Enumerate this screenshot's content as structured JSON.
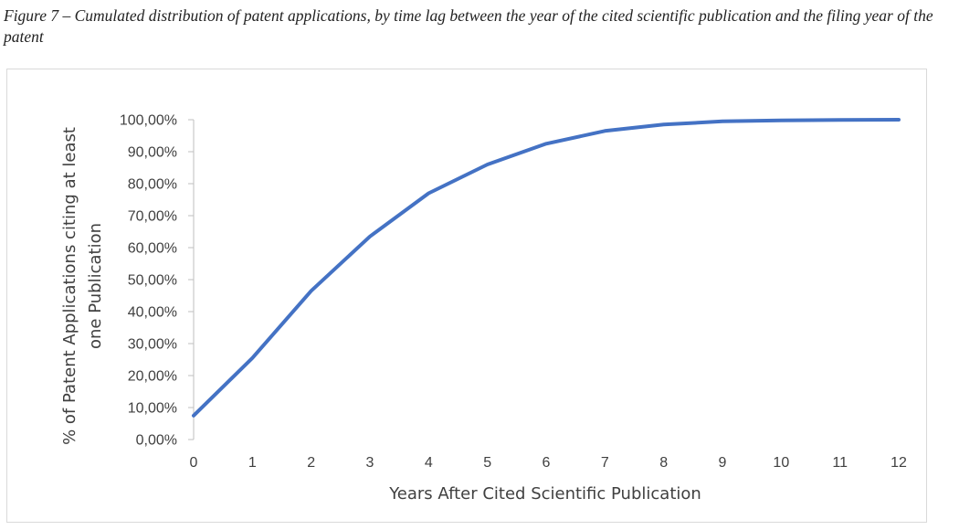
{
  "caption": "Figure 7 – Cumulated distribution of patent applications, by time lag between the year of the cited scientific publication and the filing year of the patent",
  "chart_data": {
    "type": "line",
    "x": [
      0,
      1,
      2,
      3,
      4,
      5,
      6,
      7,
      8,
      9,
      10,
      11,
      12
    ],
    "series": [
      {
        "values": [
          7.5,
          25.5,
          46.5,
          63.5,
          77.0,
          86.0,
          92.5,
          96.5,
          98.5,
          99.5,
          99.8,
          99.9,
          100.0
        ],
        "color": "#4472c4"
      }
    ],
    "xlabel": "Years After Cited Scientific Publication",
    "ylabel_line1": "% of Patent Applications citing at least",
    "ylabel_line2": "one Publication",
    "ylim": [
      0,
      100
    ],
    "xlim": [
      0,
      12
    ],
    "y_tick_labels": [
      "0,00%",
      "10,00%",
      "20,00%",
      "30,00%",
      "40,00%",
      "50,00%",
      "60,00%",
      "70,00%",
      "80,00%",
      "90,00%",
      "100,00%"
    ],
    "x_tick_labels": [
      "0",
      "1",
      "2",
      "3",
      "4",
      "5",
      "6",
      "7",
      "8",
      "9",
      "10",
      "11",
      "12"
    ],
    "grid": false,
    "legend": "none"
  }
}
